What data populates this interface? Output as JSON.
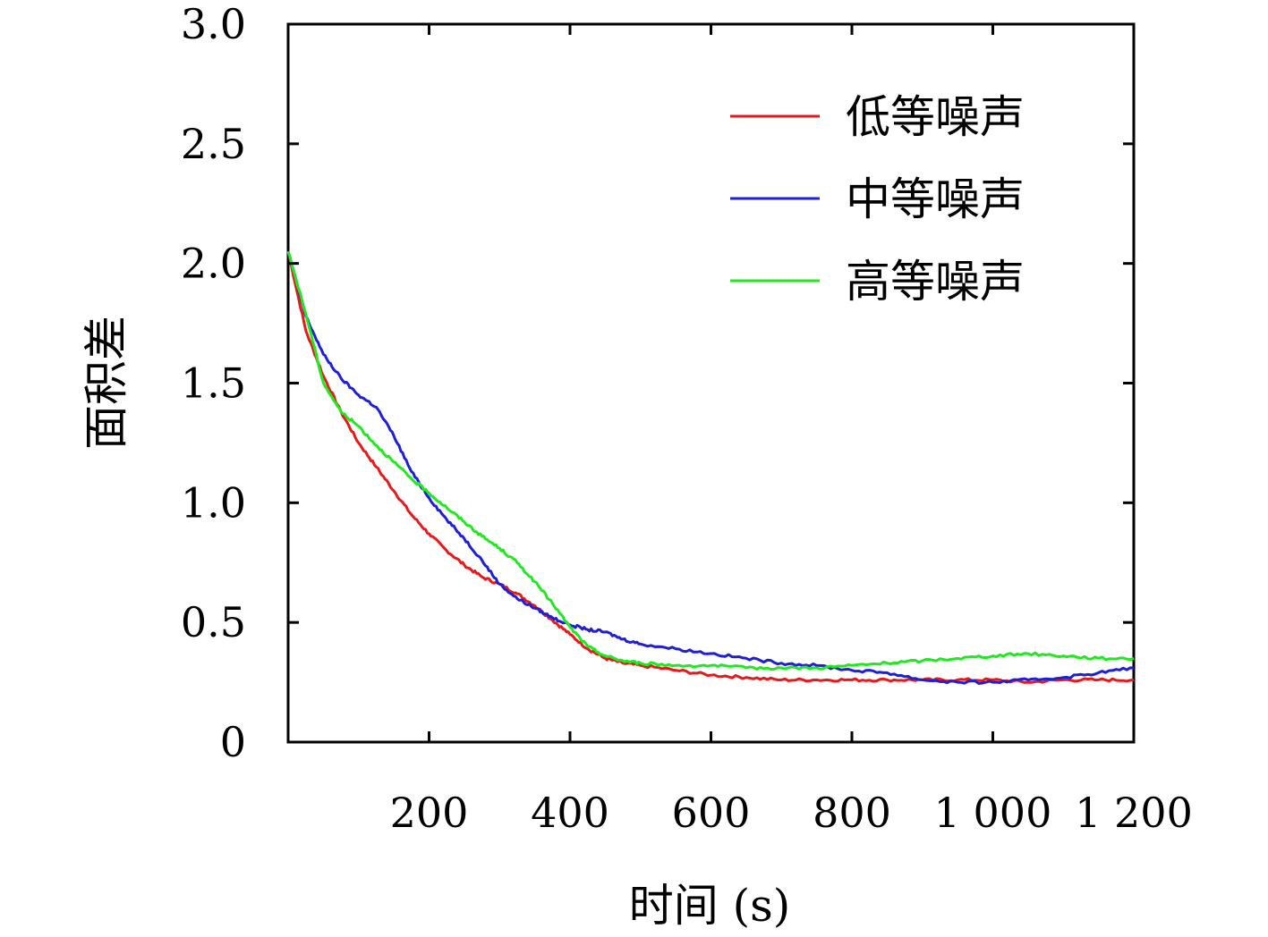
{
  "chart_data": {
    "type": "line",
    "title": "",
    "xlabel": "时间 (s)",
    "ylabel": "面积差",
    "xlim": [
      0,
      1200
    ],
    "ylim": [
      0,
      3.0
    ],
    "x_ticks": [
      200,
      400,
      600,
      800,
      1000,
      1200
    ],
    "x_tick_labels": [
      "200",
      "400",
      "600",
      "800",
      "1 000",
      "1 200"
    ],
    "y_ticks": [
      0,
      0.5,
      1.0,
      1.5,
      2.0,
      2.5,
      3.0
    ],
    "y_tick_labels": [
      "0",
      "0.5",
      "1.0",
      "1.5",
      "2.0",
      "2.5",
      "3.0"
    ],
    "grid": false,
    "legend_position": "top-right",
    "series": [
      {
        "name": "低等噪声",
        "color": "#e41a1c",
        "x": [
          0,
          25,
          50,
          75,
          100,
          125,
          150,
          175,
          200,
          225,
          250,
          275,
          300,
          325,
          350,
          375,
          400,
          425,
          450,
          475,
          500,
          550,
          600,
          650,
          700,
          750,
          800,
          850,
          900,
          950,
          1000,
          1050,
          1100,
          1150,
          1200
        ],
        "y": [
          2.05,
          1.72,
          1.53,
          1.38,
          1.25,
          1.15,
          1.05,
          0.95,
          0.87,
          0.8,
          0.74,
          0.69,
          0.66,
          0.62,
          0.57,
          0.51,
          0.45,
          0.39,
          0.35,
          0.33,
          0.32,
          0.3,
          0.28,
          0.27,
          0.26,
          0.26,
          0.26,
          0.26,
          0.26,
          0.26,
          0.26,
          0.25,
          0.26,
          0.26,
          0.26
        ]
      },
      {
        "name": "中等噪声",
        "color": "#1f1fd6",
        "x": [
          0,
          25,
          50,
          75,
          100,
          125,
          150,
          175,
          200,
          225,
          250,
          275,
          300,
          325,
          350,
          375,
          400,
          425,
          450,
          475,
          500,
          550,
          600,
          650,
          700,
          750,
          800,
          850,
          900,
          950,
          1000,
          1050,
          1100,
          1150,
          1200
        ],
        "y": [
          2.05,
          1.78,
          1.62,
          1.52,
          1.45,
          1.4,
          1.28,
          1.13,
          1.02,
          0.93,
          0.85,
          0.76,
          0.66,
          0.6,
          0.56,
          0.52,
          0.49,
          0.47,
          0.46,
          0.43,
          0.41,
          0.39,
          0.37,
          0.35,
          0.33,
          0.32,
          0.3,
          0.29,
          0.26,
          0.25,
          0.25,
          0.26,
          0.27,
          0.29,
          0.31
        ]
      },
      {
        "name": "高等噪声",
        "color": "#22e822",
        "x": [
          0,
          25,
          50,
          75,
          100,
          125,
          150,
          175,
          200,
          225,
          250,
          275,
          300,
          325,
          350,
          375,
          400,
          425,
          450,
          475,
          500,
          550,
          600,
          650,
          700,
          750,
          800,
          850,
          900,
          950,
          1000,
          1050,
          1100,
          1150,
          1200
        ],
        "y": [
          2.05,
          1.79,
          1.5,
          1.38,
          1.32,
          1.24,
          1.17,
          1.1,
          1.04,
          0.98,
          0.92,
          0.86,
          0.81,
          0.75,
          0.67,
          0.58,
          0.48,
          0.4,
          0.36,
          0.34,
          0.33,
          0.32,
          0.32,
          0.31,
          0.31,
          0.31,
          0.32,
          0.33,
          0.34,
          0.35,
          0.36,
          0.37,
          0.36,
          0.35,
          0.35
        ]
      }
    ]
  }
}
